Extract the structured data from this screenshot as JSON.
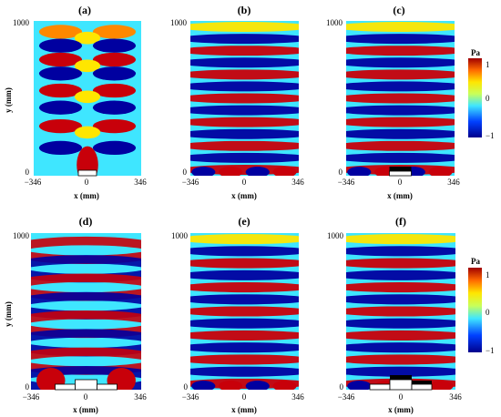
{
  "panels": [
    {
      "id": "a",
      "label": "(a)",
      "pattern": "a",
      "source": "single"
    },
    {
      "id": "b",
      "label": "(b)",
      "pattern": "band",
      "source": "none"
    },
    {
      "id": "c",
      "label": "(c)",
      "pattern": "band",
      "source": "single_black"
    },
    {
      "id": "d",
      "label": "(d)",
      "pattern": "d",
      "source": "triple"
    },
    {
      "id": "e",
      "label": "(e)",
      "pattern": "band",
      "source": "none"
    },
    {
      "id": "f",
      "label": "(f)",
      "pattern": "band2",
      "source": "triple_black"
    }
  ],
  "axes": {
    "y_top": "1000",
    "y_bottom": "0",
    "y_label": "y (mm)",
    "x_left": "−346",
    "x_mid": "0",
    "x_right": "346",
    "x_label": "x (mm)"
  },
  "colorbar": {
    "unit": "Pa",
    "max": "1",
    "mid": "0",
    "min": "−1"
  },
  "colors": {
    "red": "#c8000a",
    "orange": "#ff8800",
    "yellow": "#ffe600",
    "cyan": "#3fe6ff",
    "blue": "#0000a0"
  }
}
